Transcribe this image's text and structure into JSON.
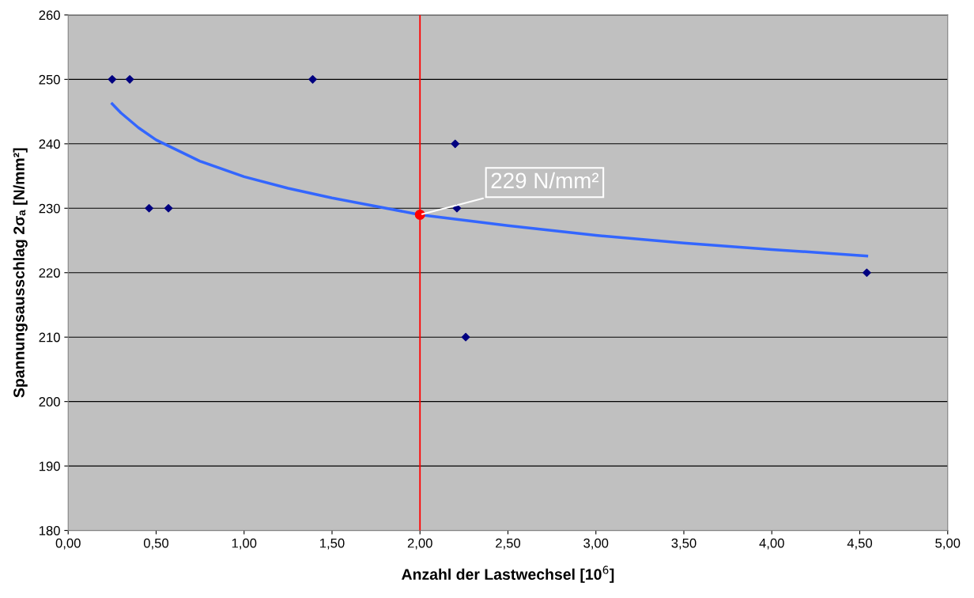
{
  "chart_data": {
    "type": "scatter",
    "xlabel": "Anzahl der Lastwechsel [10$^{6}$]",
    "ylabel": "Spannungsausschlag 2σₐ [N/mm²]",
    "xlim": [
      0,
      5
    ],
    "ylim": [
      180,
      260
    ],
    "xticks": [
      {
        "value": 0,
        "label": "0,00"
      },
      {
        "value": 0.5,
        "label": "0,50"
      },
      {
        "value": 1,
        "label": "1,00"
      },
      {
        "value": 1.5,
        "label": "1,50"
      },
      {
        "value": 2,
        "label": "2,00"
      },
      {
        "value": 2.5,
        "label": "2,50"
      },
      {
        "value": 3,
        "label": "3,00"
      },
      {
        "value": 3.5,
        "label": "3,50"
      },
      {
        "value": 4,
        "label": "4,00"
      },
      {
        "value": 4.5,
        "label": "4,50"
      },
      {
        "value": 5,
        "label": "5,00"
      }
    ],
    "yticks": [
      180,
      190,
      200,
      210,
      220,
      230,
      240,
      250,
      260
    ],
    "grid": "y",
    "series": [
      {
        "color": "#000080",
        "marker": "diamond",
        "x": [
          0.25,
          0.35,
          1.39,
          0.46,
          0.57,
          2.2,
          2.21,
          2.26,
          4.54
        ],
        "values": [
          250,
          250,
          250,
          230,
          230,
          240,
          230,
          210,
          220
        ]
      },
      {
        "type": "line",
        "color": "#3366ff",
        "marker": "none",
        "line_style": "solid",
        "x": [
          0.25,
          0.3,
          0.4,
          0.5,
          0.75,
          1,
          1.25,
          1.5,
          2,
          2.5,
          3,
          3.5,
          4,
          4.54
        ],
        "values": [
          246.2,
          244.8,
          242.5,
          240.6,
          237.3,
          234.9,
          233.1,
          231.6,
          229,
          227.3,
          225.8,
          224.6,
          223.6,
          222.6
        ]
      },
      {
        "color": "#ff0000",
        "marker": "circle",
        "x": [
          2
        ],
        "values": [
          229
        ]
      }
    ],
    "ref_lines": [
      {
        "axis": "x",
        "value": 2,
        "color": "#ff0000",
        "line_style": "solid"
      }
    ],
    "annotations": [
      {
        "text": "229 N/mm²",
        "x": 2,
        "y": 229
      }
    ]
  }
}
